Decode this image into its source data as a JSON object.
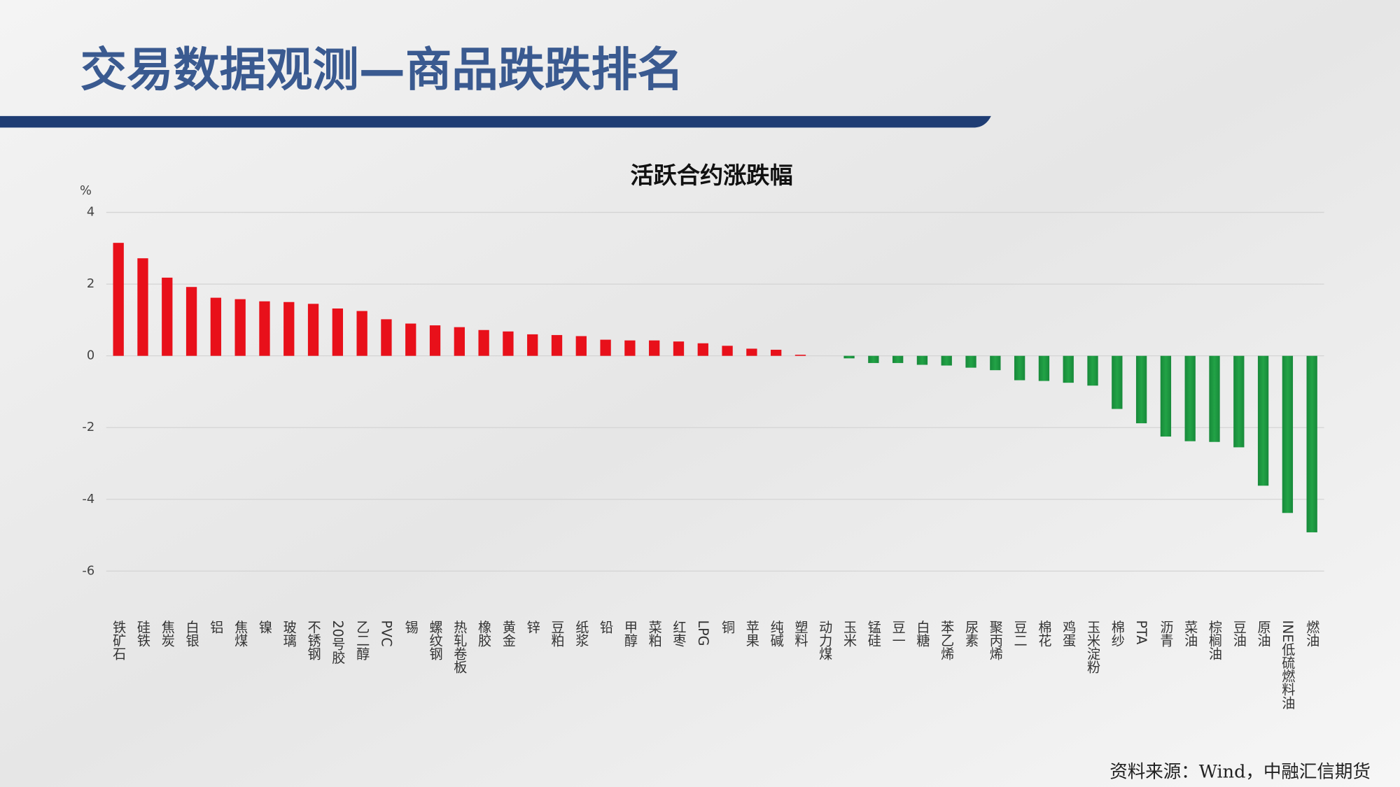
{
  "header": {
    "title": "交易数据观测—商品跌跌排名"
  },
  "chart_data": {
    "type": "bar",
    "title": "活跃合约涨跌幅",
    "y_label": "%",
    "categories": [
      "铁矿石",
      "硅铁",
      "焦炭",
      "白银",
      "铝",
      "焦煤",
      "镍",
      "玻璃",
      "不锈钢",
      "20号胶",
      "乙二醇",
      "PVC",
      "锡",
      "螺纹钢",
      "热轧卷板",
      "橡胶",
      "黄金",
      "锌",
      "豆粕",
      "纸浆",
      "铅",
      "甲醇",
      "菜粕",
      "红枣",
      "LPG",
      "铜",
      "苹果",
      "纯碱",
      "塑料",
      "动力煤",
      "玉米",
      "锰硅",
      "豆一",
      "白糖",
      "苯乙烯",
      "尿素",
      "聚丙烯",
      "豆二",
      "棉花",
      "鸡蛋",
      "玉米淀粉",
      "棉纱",
      "PTA",
      "沥青",
      "菜油",
      "棕榈油",
      "豆油",
      "原油",
      "INE低硫燃料油",
      "燃油"
    ],
    "values": [
      3.15,
      2.72,
      2.18,
      1.92,
      1.62,
      1.58,
      1.52,
      1.5,
      1.45,
      1.32,
      1.25,
      1.02,
      0.9,
      0.85,
      0.8,
      0.72,
      0.68,
      0.6,
      0.58,
      0.55,
      0.45,
      0.43,
      0.43,
      0.4,
      0.35,
      0.28,
      0.2,
      0.17,
      0.03,
      0,
      -0.07,
      -0.2,
      -0.2,
      -0.25,
      -0.27,
      -0.33,
      -0.4,
      -0.68,
      -0.7,
      -0.75,
      -0.83,
      -1.48,
      -1.88,
      -2.25,
      -2.38,
      -2.4,
      -2.55,
      -3.62,
      -4.38,
      -4.92
    ],
    "positive_color": "#e8101a",
    "negative_color": "#22a346",
    "ylim": [
      -6,
      4
    ],
    "yticks": [
      4,
      2,
      0,
      -2,
      -4,
      -6
    ],
    "grid": true
  },
  "footer": {
    "source": "资料来源：Wind，中融汇信期货"
  }
}
